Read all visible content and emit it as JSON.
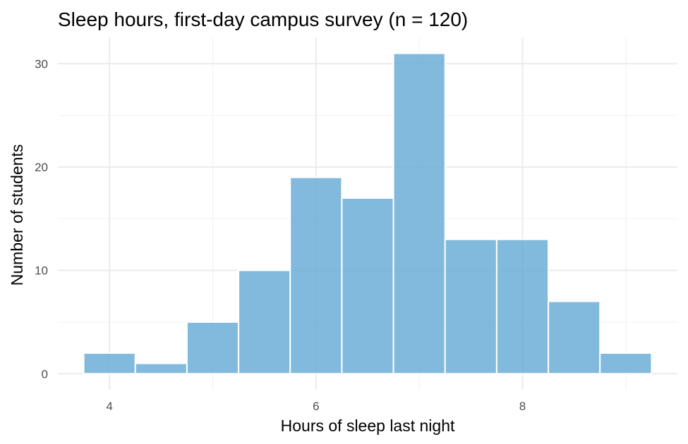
{
  "chart_data": {
    "type": "bar",
    "title": "Sleep hours, first-day campus survey (n = 120)",
    "xlabel": "Hours of sleep last night",
    "ylabel": "Number of students",
    "bin_width": 0.5,
    "bins": [
      {
        "start": 3.75,
        "end": 4.25,
        "count": 2
      },
      {
        "start": 4.25,
        "end": 4.75,
        "count": 1
      },
      {
        "start": 4.75,
        "end": 5.25,
        "count": 5
      },
      {
        "start": 5.25,
        "end": 5.75,
        "count": 10
      },
      {
        "start": 5.75,
        "end": 6.25,
        "count": 19
      },
      {
        "start": 6.25,
        "end": 6.75,
        "count": 17
      },
      {
        "start": 6.75,
        "end": 7.25,
        "count": 31
      },
      {
        "start": 7.25,
        "end": 7.75,
        "count": 13
      },
      {
        "start": 7.75,
        "end": 8.25,
        "count": 13
      },
      {
        "start": 8.25,
        "end": 8.75,
        "count": 7
      },
      {
        "start": 8.75,
        "end": 9.25,
        "count": 2
      }
    ],
    "x_ticks": [
      4,
      6,
      8
    ],
    "y_ticks": [
      0,
      10,
      20,
      30
    ],
    "xlim": [
      3.5,
      9.5
    ],
    "ylim": [
      -1.55,
      32.55
    ],
    "grid": true,
    "bar_color": "#6baed6"
  }
}
